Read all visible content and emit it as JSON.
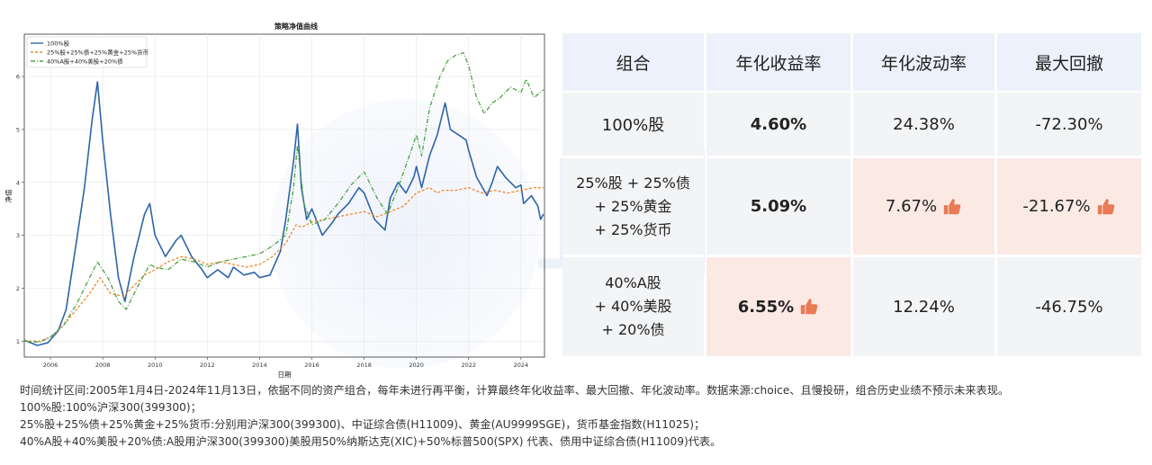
{
  "watermark": {
    "text": "且慢"
  },
  "chart_data": {
    "type": "line",
    "title": "策略净值曲线",
    "xlabel": "日期",
    "ylabel": "净值",
    "xlim": [
      2005.0,
      2024.9
    ],
    "ylim": [
      0.7,
      6.8
    ],
    "xticks": [
      2006,
      2008,
      2010,
      2012,
      2014,
      2016,
      2018,
      2020,
      2022,
      2024
    ],
    "yticks": [
      1,
      2,
      3,
      4,
      5,
      6
    ],
    "grid": true,
    "legend_position": "top-left",
    "series": [
      {
        "name": "100%股",
        "color": "#2e64a8",
        "dash": "none",
        "x": [
          2005.0,
          2005.5,
          2005.9,
          2006.3,
          2006.6,
          2007.0,
          2007.3,
          2007.6,
          2007.8,
          2008.0,
          2008.3,
          2008.6,
          2008.85,
          2009.2,
          2009.6,
          2009.8,
          2010.0,
          2010.4,
          2010.8,
          2011.0,
          2011.4,
          2011.8,
          2012.0,
          2012.4,
          2012.8,
          2013.0,
          2013.4,
          2013.8,
          2014.0,
          2014.4,
          2014.8,
          2015.0,
          2015.3,
          2015.45,
          2015.6,
          2015.8,
          2016.0,
          2016.4,
          2016.8,
          2017.0,
          2017.4,
          2017.8,
          2018.0,
          2018.4,
          2018.8,
          2019.0,
          2019.3,
          2019.6,
          2019.9,
          2020.0,
          2020.2,
          2020.5,
          2020.8,
          2021.0,
          2021.1,
          2021.3,
          2021.6,
          2021.9,
          2022.0,
          2022.3,
          2022.7,
          2022.9,
          2023.1,
          2023.4,
          2023.8,
          2024.0,
          2024.1,
          2024.4,
          2024.65,
          2024.75,
          2024.86
        ],
        "y": [
          1.02,
          0.92,
          0.97,
          1.2,
          1.6,
          2.9,
          3.9,
          5.2,
          5.9,
          4.8,
          3.4,
          2.2,
          1.75,
          2.6,
          3.4,
          3.6,
          3.0,
          2.6,
          2.9,
          3.0,
          2.6,
          2.35,
          2.2,
          2.35,
          2.2,
          2.4,
          2.25,
          2.3,
          2.2,
          2.25,
          2.7,
          3.3,
          4.4,
          5.1,
          3.9,
          3.3,
          3.5,
          3.0,
          3.25,
          3.4,
          3.6,
          3.9,
          3.8,
          3.3,
          3.1,
          3.7,
          4.0,
          3.8,
          4.1,
          4.3,
          3.9,
          4.5,
          4.9,
          5.3,
          5.5,
          5.0,
          4.9,
          4.8,
          4.6,
          4.1,
          3.75,
          4.0,
          4.3,
          4.1,
          3.9,
          3.95,
          3.6,
          3.75,
          3.55,
          3.3,
          3.4
        ]
      },
      {
        "name": "25%股+25%债+25%黄金+25%货币",
        "color": "#ec8a2c",
        "dash": "3,2",
        "x": [
          2005.0,
          2005.6,
          2006.0,
          2006.5,
          2007.0,
          2007.5,
          2007.9,
          2008.3,
          2008.8,
          2009.2,
          2009.6,
          2010.0,
          2010.5,
          2011.0,
          2011.5,
          2012.0,
          2012.5,
          2013.0,
          2013.5,
          2014.0,
          2014.5,
          2015.0,
          2015.4,
          2015.6,
          2016.0,
          2016.5,
          2017.0,
          2017.5,
          2018.0,
          2018.5,
          2019.0,
          2019.5,
          2020.0,
          2020.5,
          2020.8,
          2021.0,
          2021.5,
          2022.0,
          2022.5,
          2023.0,
          2023.5,
          2024.0,
          2024.5,
          2024.86
        ],
        "y": [
          1.0,
          1.0,
          1.08,
          1.3,
          1.6,
          1.9,
          2.2,
          1.9,
          1.85,
          2.05,
          2.25,
          2.35,
          2.5,
          2.6,
          2.55,
          2.45,
          2.5,
          2.45,
          2.4,
          2.45,
          2.6,
          2.85,
          3.2,
          3.15,
          3.25,
          3.3,
          3.35,
          3.4,
          3.45,
          3.35,
          3.45,
          3.55,
          3.8,
          3.9,
          3.8,
          3.85,
          3.85,
          3.9,
          3.8,
          3.85,
          3.8,
          3.85,
          3.9,
          3.9
        ]
      },
      {
        "name": "40%A股+40%美股+20%债",
        "color": "#4ca342",
        "dash": "5,2,1,2",
        "x": [
          2005.0,
          2005.6,
          2006.0,
          2006.5,
          2007.0,
          2007.5,
          2007.8,
          2008.2,
          2008.6,
          2008.9,
          2009.3,
          2009.8,
          2010.0,
          2010.5,
          2011.0,
          2011.5,
          2012.0,
          2012.5,
          2013.0,
          2013.5,
          2014.0,
          2014.5,
          2015.0,
          2015.3,
          2015.45,
          2015.7,
          2016.0,
          2016.5,
          2017.0,
          2017.5,
          2018.0,
          2018.5,
          2018.9,
          2019.3,
          2019.8,
          2020.0,
          2020.2,
          2020.5,
          2020.9,
          2021.2,
          2021.5,
          2021.8,
          2022.0,
          2022.3,
          2022.6,
          2022.9,
          2023.2,
          2023.6,
          2024.0,
          2024.2,
          2024.5,
          2024.86
        ],
        "y": [
          1.0,
          0.98,
          1.08,
          1.3,
          1.7,
          2.2,
          2.5,
          2.2,
          1.75,
          1.6,
          2.0,
          2.45,
          2.4,
          2.35,
          2.55,
          2.5,
          2.4,
          2.5,
          2.55,
          2.6,
          2.65,
          2.8,
          3.0,
          3.9,
          4.7,
          3.6,
          3.2,
          3.3,
          3.6,
          3.95,
          4.2,
          3.7,
          3.4,
          3.9,
          4.6,
          4.9,
          4.5,
          5.4,
          6.0,
          6.3,
          6.4,
          6.45,
          6.2,
          5.6,
          5.3,
          5.5,
          5.6,
          5.8,
          5.7,
          5.95,
          5.6,
          5.75
        ]
      }
    ]
  },
  "table": {
    "headers": [
      "组合",
      "年化收益率",
      "年化波动率",
      "最大回撤"
    ],
    "rows": [
      {
        "name": "100%股",
        "ret": "4.60%",
        "vol": "24.38%",
        "dd": "-72.30%"
      },
      {
        "name": "25%股 + 25%债\n+ 25%黄金\n+ 25%货币",
        "ret": "5.09%",
        "vol": "7.67%",
        "dd": "-21.67%"
      },
      {
        "name": "40%A股\n+ 40%美股\n+ 20%债",
        "ret": "6.55%",
        "vol": "12.24%",
        "dd": "-46.75%"
      }
    ],
    "highlight_color": "#fbe9e4",
    "thumb_color": "#e87a55",
    "thumb_icon": "thumbs-up-icon"
  },
  "footnote": {
    "line1": "时间统计区间:2005年1月4日-2024年11月13日，依据不同的资产组合，每年未进行再平衡，计算最终年化收益率、最大回撤、年化波动率。数据来源:choice、且慢投研，组合历史业绩不预示未来表现。",
    "line2": "100%股:100%沪深300(399300)；",
    "line3": "25%股+25%债+25%黄金+25%货币:分别用沪深300(399300)、中证综合债(H11009)、黄金(AU9999SGE)，货币基金指数(H11025)；",
    "line4": "40%A股+40%美股+20%债:A股用沪深300(399300)美股用50%纳斯达克(XIC)+50%标普500(SPX) 代表、债用中证综合债(H11009)代表。"
  }
}
